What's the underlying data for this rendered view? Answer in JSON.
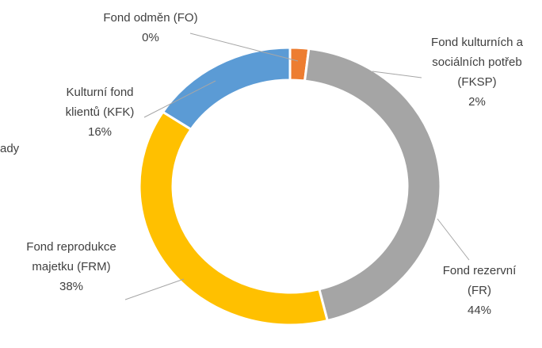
{
  "chart_data": {
    "type": "donut",
    "categories": [
      "Fond odměn (FO)",
      "Fond kulturních a sociálních potřeb (FKSP)",
      "Fond rezervní (FR)",
      "Fond reprodukce majetku (FRM)",
      "Kulturní fond klientů (KFK)"
    ],
    "values": [
      0,
      2,
      44,
      38,
      16
    ],
    "value_labels": [
      "0%",
      "2%",
      "44%",
      "38%",
      "16%"
    ],
    "colors": [
      "#5b9bd5",
      "#ed7d31",
      "#a5a5a5",
      "#ffc000",
      "#5b9bd5"
    ],
    "annotations": [
      "ady"
    ]
  }
}
